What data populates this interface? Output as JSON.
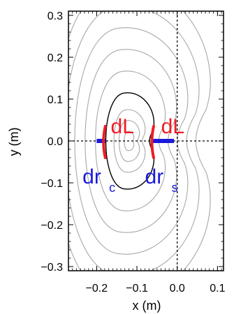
{
  "chart_data": {
    "type": "contour",
    "xlabel": "x (m)",
    "ylabel": "y (m)",
    "xlim": [
      -0.27,
      0.115
    ],
    "ylim": [
      -0.31,
      0.31
    ],
    "x_ticks": [
      -0.2,
      -0.1,
      0.0,
      0.1
    ],
    "x_tick_labels": [
      "−0.2",
      "−0.1",
      "0.0",
      "0.1"
    ],
    "y_ticks": [
      0.3,
      0.2,
      0.1,
      0.0,
      -0.1,
      -0.2,
      -0.3
    ],
    "y_tick_labels": [
      "0.3",
      "0.2",
      "0.1",
      "0.0",
      "−0.1",
      "−0.2",
      "−0.3"
    ],
    "reference_lines": {
      "x": 0.0,
      "y": 0.0,
      "style": "dotted"
    },
    "contours": {
      "center": [
        -0.12,
        0.0
      ],
      "inner_gray_levels": 3,
      "black_levels": 1,
      "outer_gray_levels": 5,
      "colors": {
        "gray": "#a8a8a8",
        "black": "#000000"
      }
    },
    "markers": [
      {
        "name": "dr_c",
        "x0": -0.2,
        "x1": -0.178,
        "y": 0.0,
        "color": "#1a1adb"
      },
      {
        "name": "dr_s",
        "x0": -0.06,
        "x1": -0.008,
        "y": 0.0,
        "color": "#1a1adb"
      },
      {
        "name": "dL_c",
        "x": -0.182,
        "y0": -0.04,
        "y1": 0.035,
        "color": "#ee1c25"
      },
      {
        "name": "dL_s",
        "x": -0.062,
        "y0": -0.04,
        "y1": 0.035,
        "color": "#ee1c25"
      }
    ],
    "annotations": [
      {
        "id": "dL_left",
        "text": "dL",
        "x": -0.165,
        "y": 0.035,
        "color": "#ee1c25"
      },
      {
        "id": "dL_right",
        "text": "dL",
        "x": -0.04,
        "y": 0.035,
        "color": "#ee1c25"
      },
      {
        "id": "drc",
        "text": "dr",
        "sub": "c",
        "x": -0.235,
        "y": -0.085,
        "color": "#1a1adb"
      },
      {
        "id": "drs",
        "text": "dr",
        "sub": "s",
        "x": -0.08,
        "y": -0.085,
        "color": "#1a1adb"
      }
    ]
  }
}
